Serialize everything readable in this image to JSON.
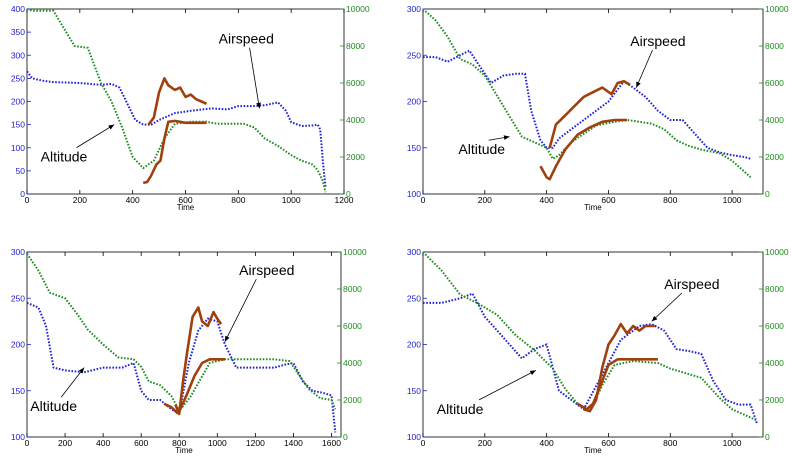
{
  "colors": {
    "airspeed": "#1f1fd6",
    "altitude": "#1e8c1e",
    "highlight": "#a0400c",
    "left_axis": "#2020cc",
    "right_axis": "#1e8c1e"
  },
  "chart_data": [
    {
      "type": "line",
      "xlabel": "Time",
      "xlim": [
        0,
        1200
      ],
      "xticks": [
        0,
        200,
        400,
        600,
        800,
        1000,
        1200
      ],
      "ylim_left": [
        0,
        400
      ],
      "yticks_left": [
        0,
        50,
        100,
        150,
        200,
        250,
        300,
        350,
        400
      ],
      "ylim_right": [
        0,
        10000
      ],
      "yticks_right": [
        0,
        2000,
        4000,
        6000,
        8000,
        10000
      ],
      "grid": false,
      "annotations": [
        {
          "text": "Airspeed",
          "text_at": [
            830,
            325
          ],
          "arrow_to": [
            880,
            185
          ]
        },
        {
          "text": "Altitude",
          "text_at": [
            140,
            70
          ],
          "arrow_to": [
            330,
            150
          ]
        }
      ],
      "series": [
        {
          "axis": "left",
          "style": "dotted",
          "color_key": "airspeed",
          "x": [
            0,
            20,
            60,
            100,
            200,
            280,
            320,
            350,
            380,
            410,
            440,
            470,
            500,
            560,
            620,
            700,
            760,
            800,
            860,
            900,
            950,
            980,
            1000,
            1040,
            1080,
            1100,
            1110,
            1120,
            1130
          ],
          "y": [
            265,
            250,
            245,
            242,
            240,
            236,
            238,
            230,
            195,
            160,
            150,
            150,
            160,
            175,
            180,
            185,
            183,
            190,
            190,
            192,
            198,
            180,
            155,
            147,
            148,
            150,
            140,
            70,
            15
          ]
        },
        {
          "axis": "right",
          "style": "dotted",
          "color_key": "altitude",
          "x": [
            0,
            20,
            100,
            180,
            230,
            280,
            320,
            360,
            400,
            440,
            480,
            520,
            560,
            620,
            680,
            720,
            820,
            860,
            900,
            950,
            1000,
            1040,
            1080,
            1100,
            1120,
            1130
          ],
          "y": [
            10000,
            9900,
            9900,
            8000,
            7900,
            6000,
            5000,
            3600,
            2000,
            1400,
            1800,
            3000,
            3800,
            3900,
            3900,
            3800,
            3800,
            3600,
            3000,
            2600,
            2100,
            1800,
            1600,
            1300,
            700,
            100
          ]
        },
        {
          "axis": "left",
          "style": "solid",
          "color_key": "highlight",
          "x": [
            460,
            480,
            500,
            520,
            535,
            560,
            580,
            600,
            620,
            640,
            660,
            680
          ],
          "y": [
            150,
            165,
            220,
            250,
            235,
            225,
            230,
            210,
            215,
            205,
            200,
            195
          ]
        },
        {
          "axis": "right",
          "style": "solid",
          "color_key": "highlight",
          "x": [
            440,
            455,
            470,
            490,
            505,
            520,
            535,
            560,
            600,
            640,
            680
          ],
          "y": [
            600,
            650,
            1000,
            1600,
            1800,
            3000,
            3900,
            3950,
            3850,
            3850,
            3850
          ]
        }
      ]
    },
    {
      "type": "line",
      "xlabel": "Time",
      "xlim": [
        0,
        1100
      ],
      "xticks": [
        0,
        200,
        400,
        600,
        800,
        1000
      ],
      "ylim_left": [
        100,
        300
      ],
      "yticks_left": [
        100,
        150,
        200,
        250,
        300
      ],
      "ylim_right": [
        0,
        10000
      ],
      "yticks_right": [
        0,
        2000,
        4000,
        6000,
        8000,
        10000
      ],
      "grid": false,
      "annotations": [
        {
          "text": "Airspeed",
          "text_at": [
            760,
            260
          ],
          "arrow_to": [
            690,
            215
          ]
        },
        {
          "text": "Altitude",
          "text_at": [
            190,
            143
          ],
          "arrow_to": [
            280,
            162
          ]
        }
      ],
      "series": [
        {
          "axis": "left",
          "style": "dotted",
          "color_key": "airspeed",
          "x": [
            0,
            40,
            80,
            120,
            150,
            180,
            220,
            260,
            300,
            330,
            350,
            380,
            400,
            420,
            440,
            500,
            600,
            650,
            680,
            720,
            760,
            800,
            840,
            880,
            920,
            960,
            1000,
            1040,
            1060
          ],
          "y": [
            248,
            248,
            243,
            250,
            255,
            240,
            220,
            228,
            230,
            230,
            190,
            158,
            150,
            150,
            160,
            175,
            200,
            222,
            215,
            205,
            190,
            180,
            180,
            165,
            150,
            145,
            142,
            140,
            138
          ]
        },
        {
          "axis": "right",
          "style": "dotted",
          "color_key": "altitude",
          "x": [
            0,
            40,
            80,
            120,
            160,
            200,
            240,
            280,
            320,
            360,
            400,
            420,
            440,
            480,
            560,
            620,
            660,
            700,
            740,
            780,
            820,
            860,
            900,
            960,
            1000,
            1040,
            1060
          ],
          "y": [
            10000,
            9400,
            8500,
            7300,
            7000,
            6400,
            5300,
            4200,
            3100,
            2800,
            2500,
            1900,
            2100,
            2800,
            3700,
            3900,
            4000,
            3900,
            3800,
            3500,
            2900,
            2600,
            2400,
            2200,
            1800,
            1200,
            900
          ]
        },
        {
          "axis": "left",
          "style": "solid",
          "color_key": "highlight",
          "x": [
            410,
            430,
            460,
            490,
            520,
            550,
            580,
            610,
            630,
            650,
            670
          ],
          "y": [
            150,
            175,
            185,
            195,
            205,
            210,
            215,
            208,
            220,
            222,
            218
          ]
        },
        {
          "axis": "right",
          "style": "solid",
          "color_key": "highlight",
          "x": [
            380,
            400,
            410,
            430,
            460,
            500,
            540,
            580,
            620,
            660
          ],
          "y": [
            1500,
            900,
            800,
            1500,
            2400,
            3200,
            3600,
            3900,
            4000,
            4000
          ]
        }
      ]
    },
    {
      "type": "line",
      "xlabel": "Time",
      "xlim": [
        0,
        1650
      ],
      "xticks": [
        0,
        200,
        400,
        600,
        800,
        1000,
        1200,
        1400,
        1600
      ],
      "ylim_left": [
        100,
        300
      ],
      "yticks_left": [
        100,
        150,
        200,
        250,
        300
      ],
      "ylim_right": [
        0,
        10000
      ],
      "yticks_right": [
        0,
        2000,
        4000,
        6000,
        8000,
        10000
      ],
      "grid": false,
      "annotations": [
        {
          "text": "Airspeed",
          "text_at": [
            1260,
            275
          ],
          "arrow_to": [
            1040,
            203
          ]
        },
        {
          "text": "Altitude",
          "text_at": [
            140,
            128
          ],
          "arrow_to": [
            300,
            175
          ]
        }
      ],
      "series": [
        {
          "axis": "left",
          "style": "dotted",
          "color_key": "airspeed",
          "x": [
            0,
            60,
            100,
            140,
            200,
            300,
            400,
            500,
            560,
            600,
            640,
            700,
            760,
            800,
            850,
            900,
            950,
            1000,
            1040,
            1100,
            1200,
            1300,
            1350,
            1400,
            1450,
            1500,
            1550,
            1600,
            1620
          ],
          "y": [
            245,
            240,
            220,
            175,
            172,
            170,
            175,
            175,
            180,
            150,
            140,
            140,
            130,
            125,
            180,
            215,
            228,
            225,
            200,
            175,
            175,
            175,
            178,
            180,
            160,
            150,
            148,
            145,
            105
          ]
        },
        {
          "axis": "right",
          "style": "dotted",
          "color_key": "altitude",
          "x": [
            0,
            60,
            120,
            200,
            260,
            320,
            400,
            480,
            560,
            600,
            640,
            700,
            760,
            800,
            860,
            960,
            1040,
            1100,
            1200,
            1300,
            1380,
            1420,
            1480,
            1540,
            1600,
            1620
          ],
          "y": [
            9900,
            9000,
            7800,
            7500,
            6700,
            5800,
            5000,
            4300,
            4200,
            3800,
            3000,
            2800,
            2200,
            1400,
            2200,
            4000,
            4200,
            4200,
            4200,
            4200,
            4100,
            3500,
            2600,
            2100,
            2000,
            1500
          ]
        },
        {
          "axis": "left",
          "style": "solid",
          "color_key": "highlight",
          "x": [
            780,
            800,
            820,
            840,
            870,
            900,
            920,
            950,
            980,
            1000,
            1020
          ],
          "y": [
            135,
            125,
            160,
            190,
            230,
            240,
            225,
            220,
            235,
            228,
            222
          ]
        },
        {
          "axis": "right",
          "style": "solid",
          "color_key": "highlight",
          "x": [
            720,
            760,
            790,
            810,
            840,
            880,
            920,
            960,
            1000,
            1040
          ],
          "y": [
            1800,
            1600,
            1300,
            1600,
            2300,
            3300,
            4000,
            4200,
            4200,
            4200
          ]
        }
      ]
    },
    {
      "type": "line",
      "xlabel": "Time",
      "xlim": [
        0,
        1100
      ],
      "xticks": [
        0,
        200,
        400,
        600,
        800,
        1000
      ],
      "ylim_left": [
        100,
        300
      ],
      "yticks_left": [
        100,
        150,
        200,
        250,
        300
      ],
      "ylim_right": [
        0,
        10000
      ],
      "yticks_right": [
        0,
        2000,
        4000,
        6000,
        8000,
        10000
      ],
      "grid": false,
      "annotations": [
        {
          "text": "Airspeed",
          "text_at": [
            870,
            260
          ],
          "arrow_to": [
            740,
            225
          ]
        },
        {
          "text": "Altitude",
          "text_at": [
            120,
            125
          ],
          "arrow_to": [
            365,
            172
          ]
        }
      ],
      "series": [
        {
          "axis": "left",
          "style": "dotted",
          "color_key": "airspeed",
          "x": [
            0,
            60,
            120,
            160,
            200,
            240,
            280,
            320,
            360,
            400,
            440,
            480,
            520,
            560,
            600,
            640,
            700,
            740,
            780,
            820,
            860,
            900,
            940,
            980,
            1020,
            1060,
            1080
          ],
          "y": [
            245,
            245,
            250,
            255,
            230,
            215,
            200,
            185,
            195,
            200,
            150,
            140,
            130,
            155,
            180,
            205,
            220,
            222,
            215,
            195,
            193,
            190,
            160,
            140,
            135,
            135,
            115
          ]
        },
        {
          "axis": "right",
          "style": "dotted",
          "color_key": "altitude",
          "x": [
            0,
            60,
            120,
            180,
            240,
            300,
            360,
            420,
            460,
            500,
            540,
            580,
            620,
            680,
            760,
            800,
            860,
            900,
            960,
            1000,
            1040,
            1080
          ],
          "y": [
            10000,
            9000,
            7700,
            7200,
            6600,
            5500,
            4700,
            3700,
            2600,
            1800,
            1400,
            2800,
            3900,
            4100,
            4000,
            3700,
            3400,
            3200,
            2100,
            1500,
            1200,
            900
          ]
        },
        {
          "axis": "left",
          "style": "solid",
          "color_key": "highlight",
          "x": [
            520,
            540,
            560,
            580,
            600,
            620,
            640,
            660,
            680,
            700,
            720,
            750
          ],
          "y": [
            130,
            128,
            140,
            175,
            200,
            210,
            222,
            212,
            220,
            215,
            220,
            220
          ]
        },
        {
          "axis": "right",
          "style": "solid",
          "color_key": "highlight",
          "x": [
            500,
            530,
            550,
            570,
            600,
            630,
            680,
            720,
            760
          ],
          "y": [
            1800,
            1500,
            1800,
            2600,
            3900,
            4200,
            4200,
            4200,
            4200
          ]
        }
      ]
    }
  ]
}
